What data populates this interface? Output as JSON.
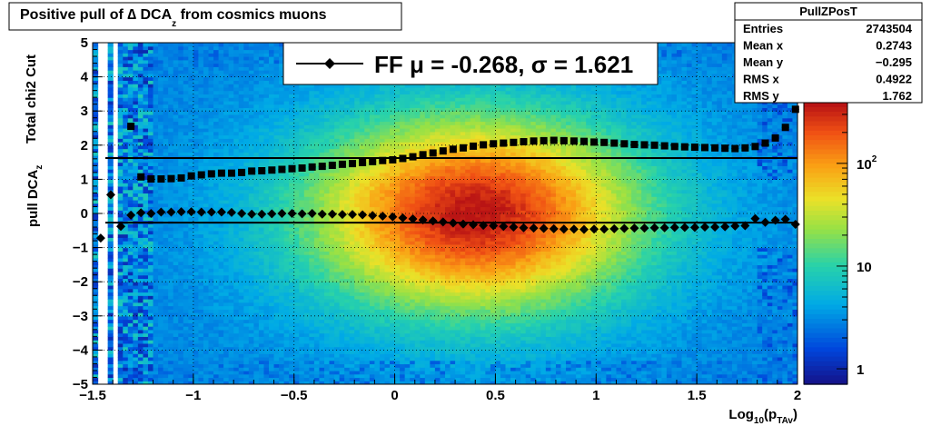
{
  "title": {
    "prefix": "Positive pull of ",
    "delta": "∆",
    "main": " DCA",
    "sub": "z",
    "suffix": "  from cosmics muons"
  },
  "stats": {
    "header": "PullZPosT",
    "rows": [
      {
        "label": "Entries",
        "value": "2743504"
      },
      {
        "label": "Mean x",
        "value": "0.2743"
      },
      {
        "label": "Mean y",
        "value": "−0.295"
      },
      {
        "label": "RMS x",
        "value": "0.4922"
      },
      {
        "label": "RMS y",
        "value": "1.762"
      }
    ]
  },
  "legend": {
    "text": "FF μ = -0.268, σ =   1.621"
  },
  "colorbar": {
    "labels": [
      {
        "main": "10",
        "sup": "2",
        "value": 100
      },
      {
        "main": "10",
        "sup": "",
        "value": 10
      },
      {
        "main": "1",
        "sup": "",
        "value": 1
      }
    ],
    "scale": "log"
  },
  "chart_data": {
    "type": "heatmap",
    "title": "Positive pull of ∆ DCA_z from cosmics muons",
    "xlabel": "Log10(pTAv)",
    "ylabel": "pull DCAz",
    "ylabel2": "Total chi2 Cut",
    "xlim": [
      -1.5,
      2.0
    ],
    "ylim": [
      -5,
      5
    ],
    "x_ticks": [
      "−1.5",
      "−1",
      "−0.5",
      "0",
      "0.5",
      "1",
      "1.5",
      "2"
    ],
    "x_tick_values": [
      -1.5,
      -1,
      -0.5,
      0,
      0.5,
      1,
      1.5,
      2
    ],
    "y_ticks": [
      "5",
      "4",
      "3",
      "2",
      "1",
      "0",
      "−1",
      "−2",
      "−3",
      "−4",
      "−5"
    ],
    "y_tick_values": [
      5,
      4,
      3,
      2,
      1,
      0,
      -1,
      -2,
      -3,
      -4,
      -5
    ],
    "x_label_parts": {
      "main": "Log",
      "sub1": "10",
      "mid": "(p",
      "sub2": "TAv",
      "end": ")"
    },
    "y_label_parts": {
      "main": "pull DCA",
      "sub": "z"
    },
    "grid": true,
    "colorscale": "log",
    "density_peak": {
      "x": 0.4,
      "y": 0.0
    },
    "series": [
      {
        "name": "mean",
        "marker": "diamond",
        "x": [
          -1.46,
          -1.41,
          -1.36,
          -1.31,
          -1.26,
          -1.21,
          -1.16,
          -1.11,
          -1.06,
          -1.01,
          -0.96,
          -0.91,
          -0.86,
          -0.81,
          -0.76,
          -0.71,
          -0.66,
          -0.61,
          -0.56,
          -0.51,
          -0.46,
          -0.41,
          -0.36,
          -0.31,
          -0.26,
          -0.21,
          -0.16,
          -0.11,
          -0.06,
          -0.01,
          0.04,
          0.09,
          0.14,
          0.19,
          0.24,
          0.29,
          0.34,
          0.39,
          0.44,
          0.49,
          0.54,
          0.59,
          0.64,
          0.69,
          0.74,
          0.79,
          0.84,
          0.89,
          0.94,
          0.99,
          1.04,
          1.09,
          1.14,
          1.19,
          1.24,
          1.29,
          1.34,
          1.39,
          1.44,
          1.49,
          1.54,
          1.59,
          1.64,
          1.69,
          1.74,
          1.79,
          1.84,
          1.89,
          1.94,
          1.99
        ],
        "values": [
          -0.72,
          0.55,
          -0.38,
          -0.05,
          0.02,
          0.0,
          0.04,
          0.04,
          0.05,
          0.05,
          0.04,
          0.04,
          0.04,
          0.03,
          0.0,
          -0.02,
          -0.02,
          -0.01,
          0.0,
          0.0,
          -0.01,
          0.0,
          -0.02,
          -0.02,
          -0.03,
          -0.03,
          -0.04,
          -0.06,
          -0.08,
          -0.1,
          -0.13,
          -0.16,
          -0.19,
          -0.22,
          -0.25,
          -0.28,
          -0.31,
          -0.33,
          -0.35,
          -0.36,
          -0.38,
          -0.4,
          -0.42,
          -0.43,
          -0.44,
          -0.45,
          -0.46,
          -0.46,
          -0.47,
          -0.46,
          -0.46,
          -0.45,
          -0.44,
          -0.43,
          -0.43,
          -0.42,
          -0.42,
          -0.41,
          -0.41,
          -0.41,
          -0.4,
          -0.4,
          -0.39,
          -0.37,
          -0.36,
          -0.15,
          -0.26,
          -0.2,
          -0.17,
          -0.32
        ]
      },
      {
        "name": "rms",
        "marker": "square",
        "x": [
          -1.31,
          -1.26,
          -1.21,
          -1.16,
          -1.11,
          -1.06,
          -1.01,
          -0.96,
          -0.91,
          -0.86,
          -0.81,
          -0.76,
          -0.71,
          -0.66,
          -0.61,
          -0.56,
          -0.51,
          -0.46,
          -0.41,
          -0.36,
          -0.31,
          -0.26,
          -0.21,
          -0.16,
          -0.11,
          -0.06,
          -0.01,
          0.04,
          0.09,
          0.14,
          0.19,
          0.24,
          0.29,
          0.34,
          0.39,
          0.44,
          0.49,
          0.54,
          0.59,
          0.64,
          0.69,
          0.74,
          0.79,
          0.84,
          0.89,
          0.94,
          0.99,
          1.04,
          1.09,
          1.14,
          1.19,
          1.24,
          1.29,
          1.34,
          1.39,
          1.44,
          1.49,
          1.54,
          1.59,
          1.64,
          1.69,
          1.74,
          1.79,
          1.84,
          1.89,
          1.94,
          1.99
        ],
        "values": [
          2.55,
          1.07,
          1.01,
          1.01,
          1.02,
          1.04,
          1.1,
          1.13,
          1.16,
          1.18,
          1.18,
          1.2,
          1.24,
          1.25,
          1.27,
          1.29,
          1.31,
          1.33,
          1.36,
          1.38,
          1.41,
          1.44,
          1.46,
          1.49,
          1.52,
          1.55,
          1.57,
          1.61,
          1.66,
          1.72,
          1.77,
          1.83,
          1.88,
          1.92,
          1.97,
          2.01,
          2.04,
          2.06,
          2.08,
          2.1,
          2.12,
          2.13,
          2.14,
          2.13,
          2.12,
          2.11,
          2.09,
          2.08,
          2.06,
          2.04,
          2.02,
          2.01,
          2.0,
          1.98,
          1.96,
          1.95,
          1.94,
          1.93,
          1.92,
          1.91,
          1.9,
          1.92,
          1.96,
          2.06,
          2.21,
          2.52,
          3.05
        ]
      }
    ],
    "hlines": [
      {
        "y": 1.621
      },
      {
        "y": -0.268
      }
    ]
  }
}
